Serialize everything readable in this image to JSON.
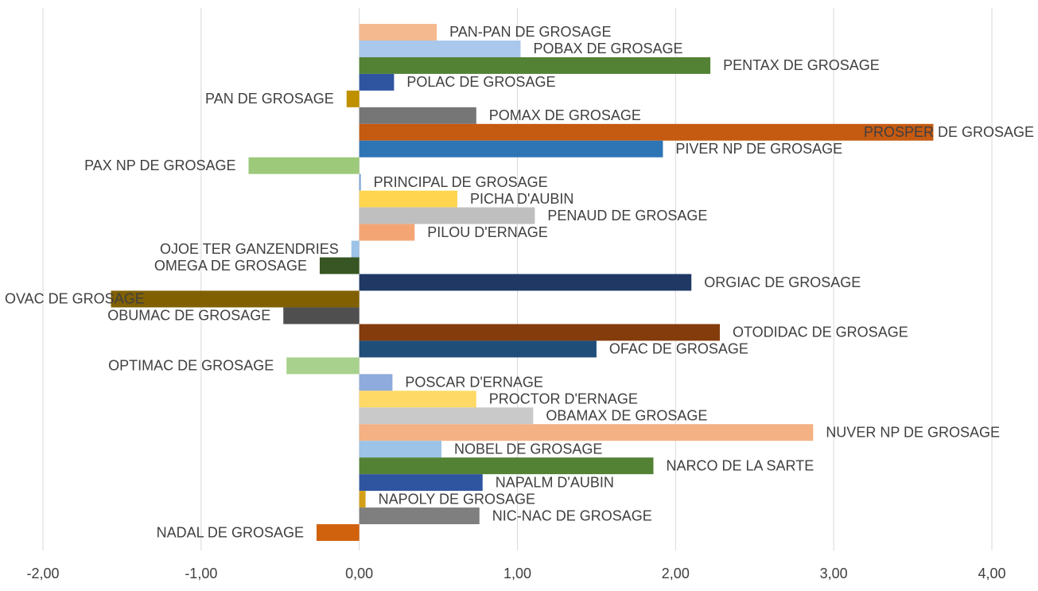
{
  "chart_data": {
    "type": "barh",
    "categories": [
      "PAN-PAN DE GROSAGE",
      "POBAX DE GROSAGE",
      "PENTAX DE GROSAGE",
      "POLAC DE GROSAGE",
      "PAN DE GROSAGE",
      "POMAX DE GROSAGE",
      "PROSPER DE GROSAGE",
      "PIVER NP DE GROSAGE",
      "PAX NP DE GROSAGE",
      "PRINCIPAL DE GROSAGE",
      "PICHA D'AUBIN",
      "PENAUD DE GROSAGE",
      "PILOU D'ERNAGE",
      "OJOE TER GANZENDRIES",
      "OMEGA DE GROSAGE",
      "ORGIAC DE GROSAGE",
      "OVAC DE GROSAGE",
      "OBUMAC DE GROSAGE",
      "OTODIDAC DE GROSAGE",
      "OFAC DE GROSAGE",
      "OPTIMAC DE GROSAGE",
      "POSCAR D'ERNAGE",
      "PROCTOR D'ERNAGE",
      "OBAMAX DE GROSAGE",
      "NUVER NP DE GROSAGE",
      "NOBEL DE GROSAGE",
      "NARCO DE LA SARTE",
      "NAPALM D'AUBIN",
      "NAPOLY DE GROSAGE",
      "NIC-NAC DE GROSAGE",
      "NADAL DE GROSAGE"
    ],
    "values": [
      0.49,
      1.02,
      2.22,
      0.22,
      -0.08,
      0.74,
      3.63,
      1.92,
      -0.7,
      0.01,
      0.62,
      1.11,
      0.35,
      -0.05,
      -0.25,
      2.1,
      -1.57,
      -0.48,
      2.28,
      1.5,
      -0.46,
      0.21,
      0.74,
      1.1,
      2.87,
      0.52,
      1.86,
      0.78,
      0.04,
      0.76,
      -0.27
    ],
    "colors": [
      "#f4b98e",
      "#a9c8eb",
      "#548235",
      "#2f55a0",
      "#bf9000",
      "#767676",
      "#c55a11",
      "#2e75b6",
      "#9cc97a",
      "#7ba3d8",
      "#ffd54f",
      "#bfbfbf",
      "#f4a574",
      "#9dc3e6",
      "#375623",
      "#1f3864",
      "#806000",
      "#4f4f4f",
      "#843c0c",
      "#1f4e79",
      "#a9d18e",
      "#8faadc",
      "#ffd966",
      "#c9c9c9",
      "#f4b183",
      "#9dc3e6",
      "#548235",
      "#2f55a0",
      "#d4a017",
      "#7f7f7f",
      "#d0620e"
    ],
    "xlim": [
      -2,
      4
    ],
    "xticks": [
      {
        "value": -2,
        "label": "-2,00"
      },
      {
        "value": -1,
        "label": "-1,00"
      },
      {
        "value": 0,
        "label": "0,00"
      },
      {
        "value": 1,
        "label": "1,00"
      },
      {
        "value": 2,
        "label": "2,00"
      },
      {
        "value": 3,
        "label": "3,00"
      },
      {
        "value": 4,
        "label": "4,00"
      }
    ],
    "grid": true
  }
}
